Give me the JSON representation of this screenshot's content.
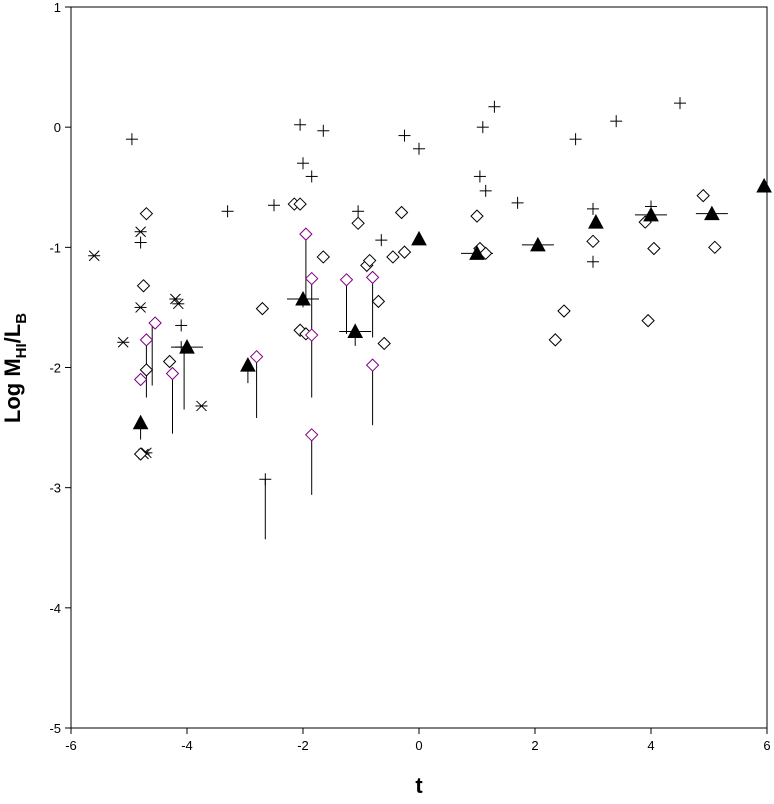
{
  "chart_data": {
    "type": "scatter",
    "title": "",
    "xlabel": "t",
    "ylabel": {
      "main": "Log M",
      "sub1": "HI",
      "sep": "/L",
      "sub2": "B"
    },
    "xlim": [
      -6,
      6
    ],
    "ylim": [
      -5,
      1
    ],
    "xticks": [
      "-6",
      "-4",
      "-2",
      "0",
      "2",
      "4",
      "6"
    ],
    "yticks": [
      "1",
      "0",
      "-1",
      "-2",
      "-3",
      "-4",
      "-5"
    ],
    "grid": false,
    "legend": "none",
    "colors": {
      "black": "#000000",
      "purple": "#800080"
    },
    "series": [
      {
        "marker": "plus",
        "color": "#000000",
        "points": [
          [
            -4.95,
            -0.1
          ],
          [
            -4.8,
            -0.96
          ],
          [
            -4.1,
            -1.65
          ],
          [
            -3.3,
            -0.7
          ],
          [
            -2.5,
            -0.65
          ],
          [
            -2.05,
            0.02
          ],
          [
            -2.0,
            -0.3
          ],
          [
            -1.85,
            -0.41
          ],
          [
            -1.65,
            -0.03
          ],
          [
            -1.05,
            -0.7
          ],
          [
            -0.65,
            -0.94
          ],
          [
            -0.25,
            -0.07
          ],
          [
            0.0,
            -0.18
          ],
          [
            1.05,
            -0.41
          ],
          [
            1.1,
            0.0
          ],
          [
            1.15,
            -0.53
          ],
          [
            1.3,
            0.17
          ],
          [
            1.7,
            -0.63
          ],
          [
            2.7,
            -0.1
          ],
          [
            3.0,
            -0.68
          ],
          [
            3.0,
            -1.12
          ],
          [
            3.4,
            0.05
          ],
          [
            4.0,
            -0.66
          ],
          [
            4.5,
            0.2
          ],
          [
            -2.65,
            -2.93
          ],
          [
            -4.1,
            -1.83
          ]
        ]
      },
      {
        "marker": "asterisk",
        "color": "#000000",
        "points": [
          [
            -5.6,
            -1.07
          ],
          [
            -5.1,
            -1.79
          ],
          [
            -4.8,
            -0.87
          ],
          [
            -4.8,
            -1.5
          ],
          [
            -4.75,
            -2.72
          ],
          [
            -4.2,
            -1.43
          ],
          [
            -4.15,
            -1.47
          ],
          [
            -3.75,
            -2.32
          ],
          [
            -4.7,
            -2.71
          ]
        ]
      },
      {
        "marker": "diamond",
        "color": "#000000",
        "points": [
          [
            -4.7,
            -0.72
          ],
          [
            -4.75,
            -1.32
          ],
          [
            -4.7,
            -2.02
          ],
          [
            -4.8,
            -2.72
          ],
          [
            -4.3,
            -1.95
          ],
          [
            -2.7,
            -1.51
          ],
          [
            -2.15,
            -0.64
          ],
          [
            -2.05,
            -0.64
          ],
          [
            -2.05,
            -1.69
          ],
          [
            -1.95,
            -1.72
          ],
          [
            -1.65,
            -1.08
          ],
          [
            -1.05,
            -0.8
          ],
          [
            -0.9,
            -1.15
          ],
          [
            -0.85,
            -1.11
          ],
          [
            -0.7,
            -1.45
          ],
          [
            -0.6,
            -1.8
          ],
          [
            -0.45,
            -1.08
          ],
          [
            -0.3,
            -0.71
          ],
          [
            -0.25,
            -1.04
          ],
          [
            1.0,
            -0.74
          ],
          [
            1.05,
            -1.01
          ],
          [
            1.15,
            -1.05
          ],
          [
            2.35,
            -1.77
          ],
          [
            2.5,
            -1.53
          ],
          [
            3.0,
            -0.95
          ],
          [
            3.9,
            -0.79
          ],
          [
            3.95,
            -1.61
          ],
          [
            4.05,
            -1.01
          ],
          [
            4.9,
            -0.57
          ],
          [
            5.1,
            -1.0
          ]
        ]
      },
      {
        "marker": "diamond",
        "color": "#800080",
        "points": [
          [
            -4.8,
            -2.1
          ],
          [
            -4.7,
            -1.77
          ],
          [
            -4.55,
            -1.63
          ],
          [
            -4.25,
            -2.05
          ],
          [
            -2.8,
            -1.91
          ],
          [
            -1.95,
            -0.89
          ],
          [
            -1.85,
            -1.26
          ],
          [
            -1.85,
            -1.73
          ],
          [
            -1.85,
            -2.56
          ],
          [
            -1.25,
            -1.27
          ],
          [
            -0.8,
            -1.25
          ],
          [
            -0.8,
            -1.98
          ]
        ]
      },
      {
        "marker": "triangle",
        "color": "#000000",
        "points": [
          [
            -4.8,
            -2.46
          ],
          [
            -4.0,
            -1.83
          ],
          [
            -2.95,
            -1.98
          ],
          [
            -2.0,
            -1.43
          ],
          [
            -1.1,
            -1.7
          ],
          [
            0.0,
            -0.93
          ],
          [
            1.0,
            -1.05
          ],
          [
            2.05,
            -0.98
          ],
          [
            3.05,
            -0.79
          ],
          [
            4.0,
            -0.73
          ],
          [
            5.05,
            -0.72
          ],
          [
            5.95,
            -0.49
          ]
        ]
      }
    ],
    "error_bars": [
      [
        -4.8,
        -2.46,
        -2.6
      ],
      [
        -4.6,
        -1.63,
        -2.15
      ],
      [
        -4.7,
        -1.77,
        -2.25
      ],
      [
        -4.25,
        -2.05,
        -2.55
      ],
      [
        -4.05,
        -1.83,
        -2.35
      ],
      [
        -2.95,
        -1.98,
        -2.13
      ],
      [
        -2.8,
        -1.91,
        -2.42
      ],
      [
        -2.65,
        -2.93,
        -3.43
      ],
      [
        -1.95,
        -0.89,
        -1.42
      ],
      [
        -1.85,
        -1.26,
        -2.25
      ],
      [
        -1.85,
        -2.56,
        -3.06
      ],
      [
        -1.25,
        -1.27,
        -1.72
      ],
      [
        -1.1,
        -1.7,
        -1.82
      ],
      [
        -0.8,
        -1.25,
        -1.75
      ],
      [
        -0.8,
        -1.98,
        -2.48
      ],
      [
        -2.0,
        -1.43,
        -1.5
      ]
    ],
    "dashes": [
      [
        -4.0,
        -1.83
      ],
      [
        -2.0,
        -1.43
      ],
      [
        -1.1,
        -1.7
      ],
      [
        1.0,
        -1.05
      ],
      [
        2.05,
        -0.98
      ],
      [
        4.0,
        -0.73
      ],
      [
        5.05,
        -0.72
      ]
    ]
  }
}
